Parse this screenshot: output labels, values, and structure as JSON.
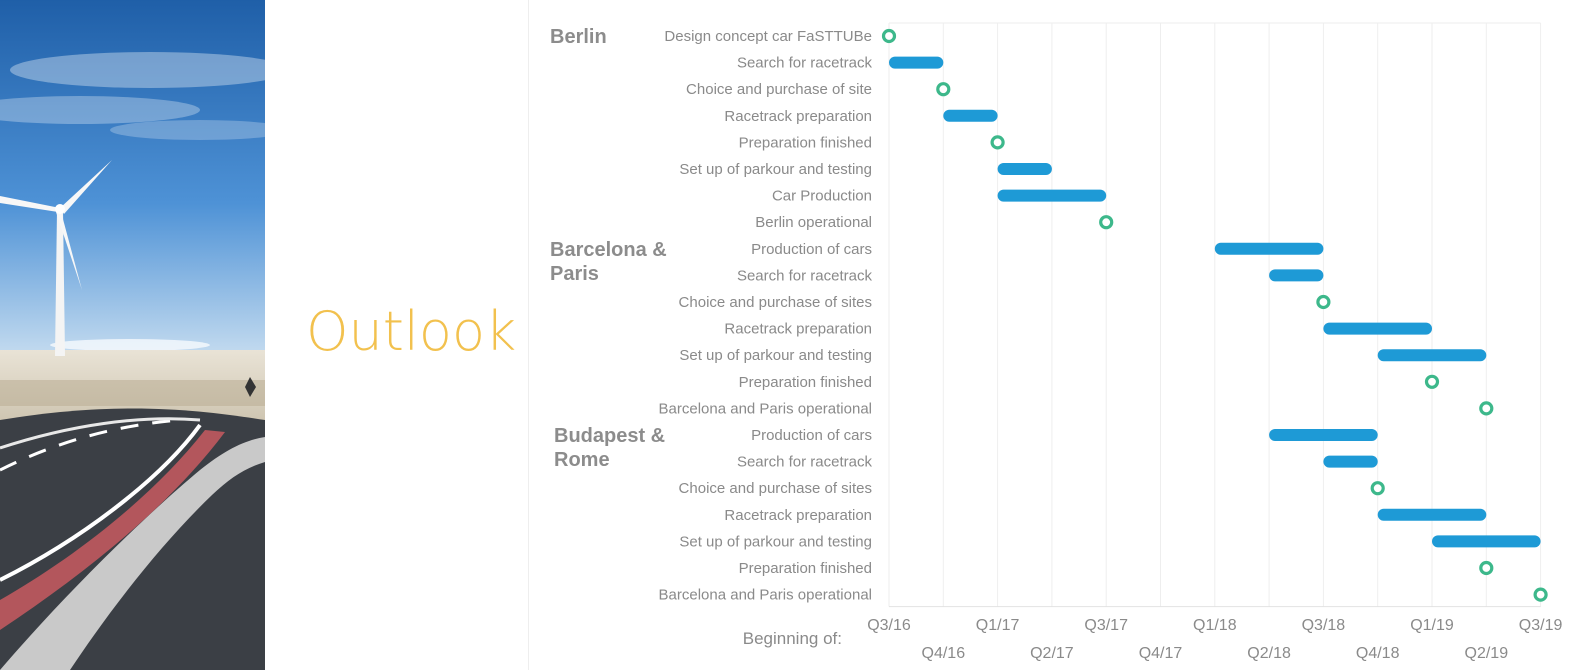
{
  "slide": {
    "title": "Outlook"
  },
  "colors": {
    "bar": "#1E9AD6",
    "milestone": "#3DB88B",
    "grid": "#eeeeee",
    "title": "#F2C14E"
  },
  "chart_data": {
    "type": "gantt",
    "time_axis": {
      "caption": "Beginning of:",
      "quarters": [
        "Q3/16",
        "Q4/16",
        "Q1/17",
        "Q2/17",
        "Q3/17",
        "Q4/17",
        "Q1/18",
        "Q2/18",
        "Q3/18",
        "Q4/18",
        "Q1/19",
        "Q2/19",
        "Q3/19"
      ]
    },
    "groups": [
      {
        "name_lines": [
          "Berlin"
        ],
        "tasks": [
          {
            "label": "Design concept car FaSTTUBe",
            "kind": "milestone",
            "at": "Q3/16"
          },
          {
            "label": "Search for racetrack",
            "kind": "bar",
            "start": "Q3/16",
            "end": "Q4/16"
          },
          {
            "label": "Choice and purchase of site",
            "kind": "milestone",
            "at": "Q4/16"
          },
          {
            "label": "Racetrack preparation",
            "kind": "bar",
            "start": "Q4/16",
            "end": "Q1/17"
          },
          {
            "label": "Preparation finished",
            "kind": "milestone",
            "at": "Q1/17"
          },
          {
            "label": "Set up of parkour and testing",
            "kind": "bar",
            "start": "Q1/17",
            "end": "Q2/17"
          },
          {
            "label": "Car Production",
            "kind": "bar",
            "start": "Q1/17",
            "end": "Q3/17"
          },
          {
            "label": "Berlin operational",
            "kind": "milestone",
            "at": "Q3/17"
          }
        ]
      },
      {
        "name_lines": [
          "Barcelona &",
          "Paris"
        ],
        "tasks": [
          {
            "label": "Production of cars",
            "kind": "bar",
            "start": "Q1/18",
            "end": "Q3/18"
          },
          {
            "label": "Search for racetrack",
            "kind": "bar",
            "start": "Q2/18",
            "end": "Q3/18"
          },
          {
            "label": "Choice and purchase of sites",
            "kind": "milestone",
            "at": "Q3/18"
          },
          {
            "label": "Racetrack preparation",
            "kind": "bar",
            "start": "Q3/18",
            "end": "Q1/19"
          },
          {
            "label": "Set up of parkour and testing",
            "kind": "bar",
            "start": "Q4/18",
            "end": "Q2/19"
          },
          {
            "label": "Preparation finished",
            "kind": "milestone",
            "at": "Q1/19"
          },
          {
            "label": "Barcelona and Paris operational",
            "kind": "milestone",
            "at": "Q2/19"
          }
        ]
      },
      {
        "name_lines": [
          "Budapest &",
          "Rome"
        ],
        "tasks": [
          {
            "label": "Production of cars",
            "kind": "bar",
            "start": "Q2/18",
            "end": "Q4/18"
          },
          {
            "label": "Search for racetrack",
            "kind": "bar",
            "start": "Q3/18",
            "end": "Q4/18"
          },
          {
            "label": "Choice and purchase of sites",
            "kind": "milestone",
            "at": "Q4/18"
          },
          {
            "label": "Racetrack preparation",
            "kind": "bar",
            "start": "Q4/18",
            "end": "Q2/19"
          },
          {
            "label": "Set up of parkour and testing",
            "kind": "bar",
            "start": "Q1/19",
            "end": "Q3/19"
          },
          {
            "label": "Preparation finished",
            "kind": "milestone",
            "at": "Q2/19"
          },
          {
            "label": "Barcelona and Paris operational",
            "kind": "milestone",
            "at": "Q3/19"
          }
        ]
      }
    ]
  }
}
